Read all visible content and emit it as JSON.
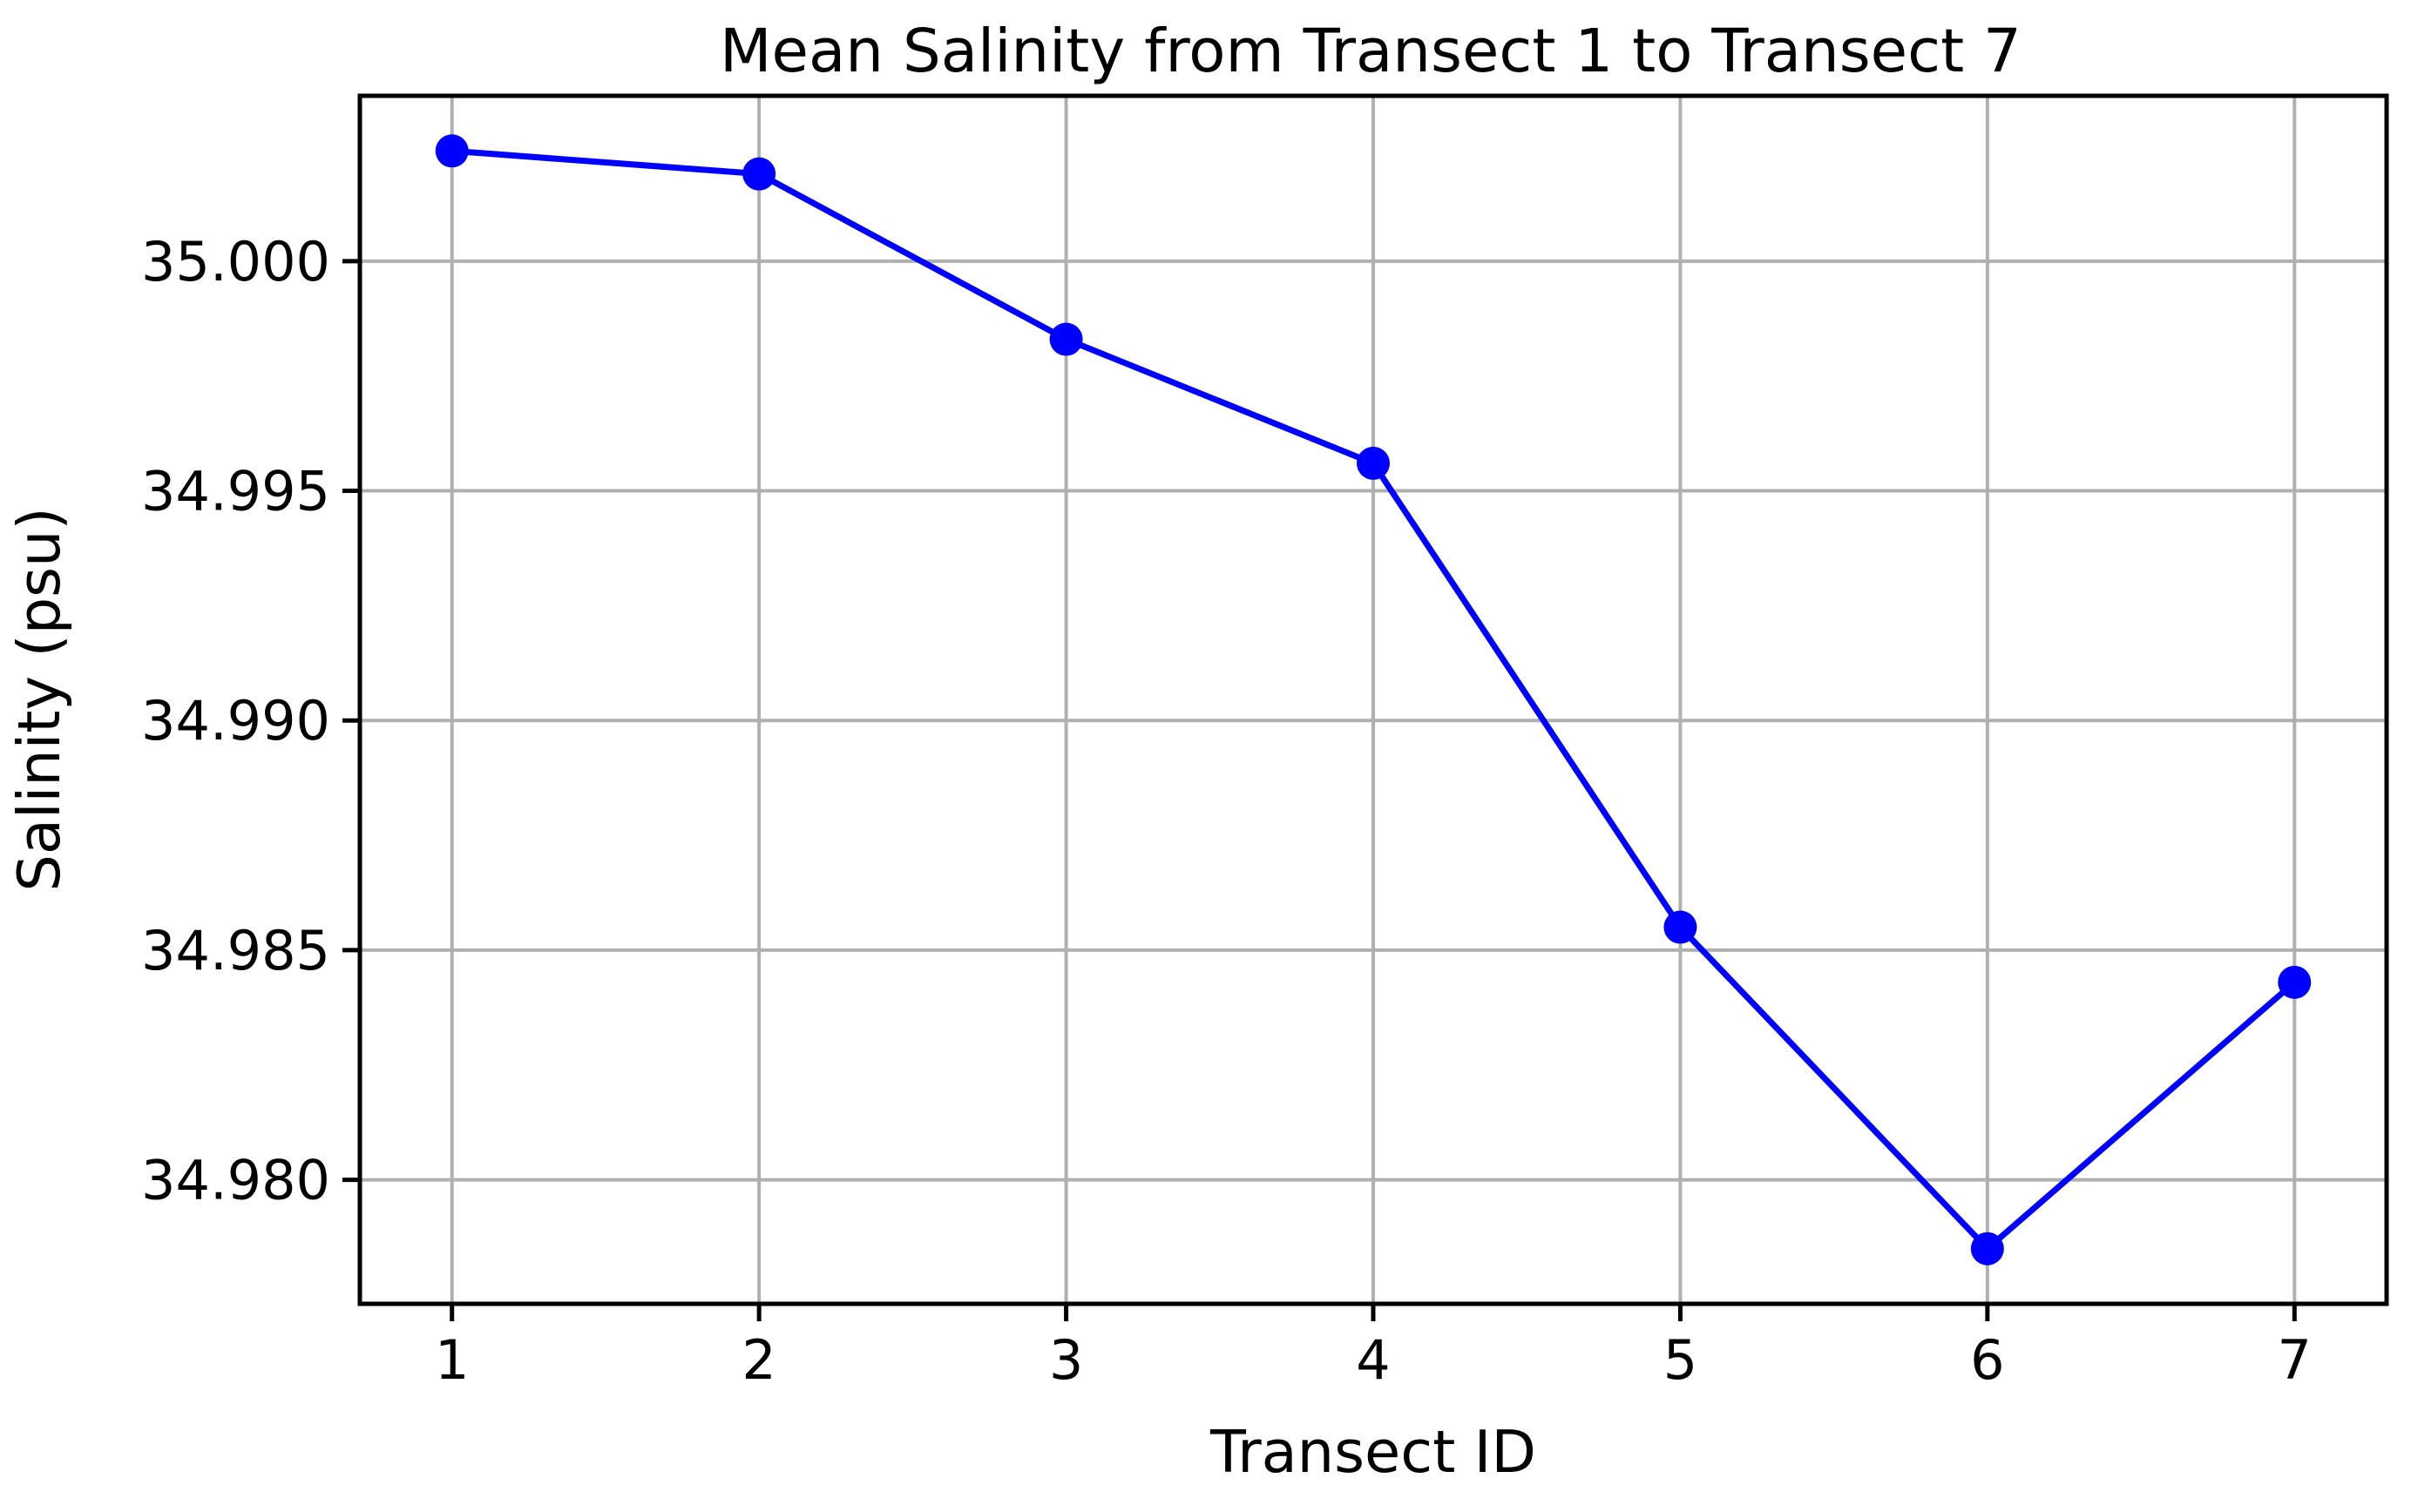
{
  "chart_data": {
    "type": "line",
    "title": "Mean Salinity from Transect 1 to Transect 7",
    "xlabel": "Transect ID",
    "ylabel": "Salinity (psu)",
    "x": [
      1,
      2,
      3,
      4,
      5,
      6,
      7
    ],
    "xlim": [
      0.7,
      7.3
    ],
    "xticks": [
      1,
      2,
      3,
      4,
      5,
      6,
      7
    ],
    "xtick_labels": [
      "1",
      "2",
      "3",
      "4",
      "5",
      "6",
      "7"
    ],
    "ylim": [
      34.9773,
      35.0036
    ],
    "yticks": [
      34.98,
      34.985,
      34.99,
      34.995,
      35.0
    ],
    "ytick_labels": [
      "34.980",
      "34.985",
      "34.990",
      "34.995",
      "35.000"
    ],
    "grid": true,
    "series": [
      {
        "values": [
          35.0024,
          35.0019,
          34.9983,
          34.9956,
          34.9855,
          34.9785,
          34.9843
        ],
        "color": "#0000ff",
        "marker": "circle"
      }
    ],
    "colors": {
      "grid": "#b0b0b0",
      "axes": "#000000",
      "line": "#0000ff"
    }
  }
}
